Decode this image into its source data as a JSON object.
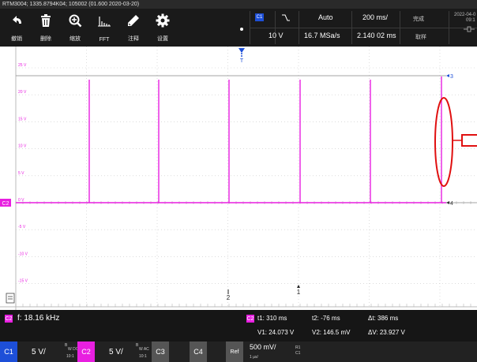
{
  "titlebar": {
    "text": "RTM3004; 1335.8794K04; 105002 (01.600 2020-03-20)"
  },
  "toolbar": {
    "undo": "撤销",
    "delete": "删除",
    "zoom": "缩放",
    "fft": "FFT",
    "annotate": "注释",
    "settings": "设置"
  },
  "acquisition": {
    "channel": "C1",
    "mode": "Auto",
    "timebase": "200 ms/",
    "status": "完成",
    "level": "10 V",
    "sample_rate": "16.7 MSa/s",
    "position": "2.140 02 ms",
    "acq_mode": "取样",
    "date": "2022-04-0",
    "time": "09:1"
  },
  "graticule": {
    "y_labels": [
      "25 V",
      "20 V",
      "15 V",
      "10 V",
      "5 V",
      "0 V",
      "-5 V",
      "-10 V",
      "-15 V"
    ],
    "channel_tag": "C2",
    "trigger_tag": "T",
    "ref_labels": [
      "3",
      "4"
    ],
    "time_markers": [
      "2",
      "1"
    ]
  },
  "measure": {
    "freq_badge": "C2",
    "freq": "f: 18.16 kHz",
    "cursor_badge": "C2",
    "t1": "t1: 310 ms",
    "t2": "t2: -76 ms",
    "dt": "Δt: 386 ms",
    "v1": "V1: 24.073 V",
    "v2": "V2: 146.5 mV",
    "dv": "ΔV: 23.927 V"
  },
  "channels": {
    "c1_label": "C1",
    "c1_scale": "5 V/",
    "c1_coupling_top": "B",
    "c1_coupling_mid": "W DC",
    "c1_probe": "10:1",
    "c2_label": "C2",
    "c2_scale": "5 V/",
    "c2_coupling_top": "B",
    "c2_coupling_mid": "W AC",
    "c2_probe": "10:1",
    "c3_label": "C3",
    "c4_label": "C4",
    "ref_label": "Ref",
    "ref_scale": "500 mV/",
    "ref_time": "1 µs/",
    "ref_src_top": "R1",
    "ref_src_bottom": "C1"
  },
  "colors": {
    "c2_magenta": "#e81fe0",
    "c1_blue": "#1d4fd8",
    "annotation_red": "#e01010"
  }
}
